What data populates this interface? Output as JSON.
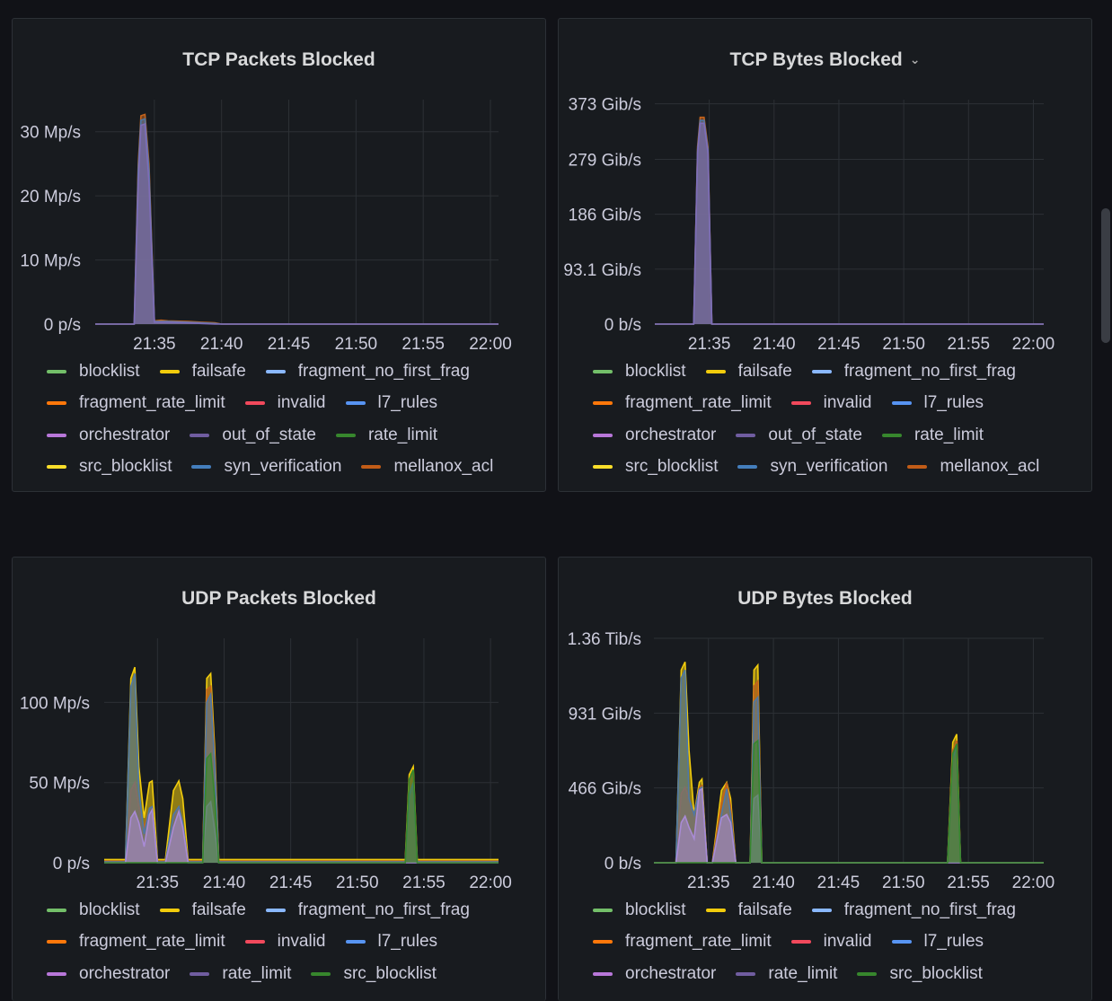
{
  "panels": [
    {
      "title": "TCP Packets Blocked",
      "has_menu": false,
      "chart_data": {
        "type": "area",
        "title": "TCP Packets Blocked",
        "unit": "p/s",
        "y_ticks": [
          "0 p/s",
          "10 Mp/s",
          "20 Mp/s",
          "30 Mp/s"
        ],
        "y_tick_values": [
          0,
          10,
          20,
          30
        ],
        "ylim": [
          0,
          35
        ],
        "x_ticks": [
          "21:35",
          "21:40",
          "21:45",
          "21:50",
          "21:55",
          "22:00"
        ],
        "x_tick_values": [
          35,
          40,
          45,
          50,
          55,
          60
        ],
        "xlim": [
          30.6,
          60.6
        ],
        "x": [
          30.6,
          33.5,
          33.8,
          34.0,
          34.3,
          34.6,
          35.0,
          35.5,
          36.0,
          37.5,
          38.5,
          39.5,
          40.0,
          60.6
        ],
        "series": [
          {
            "name": "mellanox_acl",
            "color": "#c4631c",
            "values": [
              0,
              0,
              25,
              32.5,
              32.7,
              25,
              0.5,
              0.6,
              0.5,
              0.4,
              0.3,
              0.2,
              0,
              0
            ]
          },
          {
            "name": "syn_verification",
            "color": "#4e78a6",
            "values": [
              0,
              0,
              24,
              31.8,
              32.0,
              24,
              0.4,
              0.4,
              0.4,
              0.3,
              0.2,
              0.1,
              0,
              0
            ]
          },
          {
            "name": "out_of_state",
            "color": "#7e6db8",
            "values": [
              0,
              0,
              22,
              31.0,
              31.2,
              22,
              0.3,
              0.3,
              0.3,
              0.2,
              0.1,
              0,
              0,
              0
            ]
          }
        ],
        "legend": [
          [
            {
              "name": "blocklist",
              "color": "#73bf69"
            },
            {
              "name": "failsafe",
              "color": "#f2cc0c"
            },
            {
              "name": "fragment_no_first_frag",
              "color": "#8ab8ff"
            }
          ],
          [
            {
              "name": "fragment_rate_limit",
              "color": "#ff780a"
            },
            {
              "name": "invalid",
              "color": "#f2495c"
            },
            {
              "name": "l7_rules",
              "color": "#5794f2"
            }
          ],
          [
            {
              "name": "orchestrator",
              "color": "#b877d9"
            },
            {
              "name": "out_of_state",
              "color": "#705da0"
            },
            {
              "name": "rate_limit",
              "color": "#37872d"
            }
          ],
          [
            {
              "name": "src_blocklist",
              "color": "#fade2a"
            },
            {
              "name": "syn_verification",
              "color": "#447ebc"
            },
            {
              "name": "mellanox_acl",
              "color": "#c15c17"
            }
          ]
        ]
      }
    },
    {
      "title": "TCP Bytes Blocked",
      "has_menu": true,
      "chart_data": {
        "type": "area",
        "title": "TCP Bytes Blocked",
        "unit": "b/s",
        "y_ticks": [
          "0 b/s",
          "93.1 Gib/s",
          "186 Gib/s",
          "279 Gib/s",
          "373 Gib/s"
        ],
        "y_tick_values": [
          0,
          93.1,
          186,
          279,
          373
        ],
        "ylim": [
          0,
          380
        ],
        "x_ticks": [
          "21:35",
          "21:40",
          "21:45",
          "21:50",
          "21:55",
          "22:00"
        ],
        "x_tick_values": [
          35,
          40,
          45,
          50,
          55,
          60
        ],
        "xlim": [
          30.8,
          60.8
        ],
        "x": [
          30.8,
          33.8,
          34.1,
          34.3,
          34.6,
          34.9,
          35.2,
          60.8
        ],
        "series": [
          {
            "name": "mellanox_acl",
            "color": "#c4631c",
            "values": [
              0,
              0,
              300,
              350,
              350,
              300,
              0,
              0
            ]
          },
          {
            "name": "syn_verification",
            "color": "#4e78a6",
            "values": [
              0,
              0,
              295,
              345,
              345,
              295,
              0,
              0
            ]
          },
          {
            "name": "out_of_state",
            "color": "#7e6db8",
            "values": [
              0,
              0,
              290,
              340,
              340,
              290,
              0,
              0
            ]
          }
        ],
        "legend": [
          [
            {
              "name": "blocklist",
              "color": "#73bf69"
            },
            {
              "name": "failsafe",
              "color": "#f2cc0c"
            },
            {
              "name": "fragment_no_first_frag",
              "color": "#8ab8ff"
            }
          ],
          [
            {
              "name": "fragment_rate_limit",
              "color": "#ff780a"
            },
            {
              "name": "invalid",
              "color": "#f2495c"
            },
            {
              "name": "l7_rules",
              "color": "#5794f2"
            }
          ],
          [
            {
              "name": "orchestrator",
              "color": "#b877d9"
            },
            {
              "name": "out_of_state",
              "color": "#705da0"
            },
            {
              "name": "rate_limit",
              "color": "#37872d"
            }
          ],
          [
            {
              "name": "src_blocklist",
              "color": "#fade2a"
            },
            {
              "name": "syn_verification",
              "color": "#447ebc"
            },
            {
              "name": "mellanox_acl",
              "color": "#c15c17"
            }
          ]
        ]
      }
    },
    {
      "title": "UDP Packets Blocked",
      "has_menu": false,
      "chart_data": {
        "type": "area",
        "title": "UDP Packets Blocked",
        "unit": "p/s",
        "y_ticks": [
          "0 p/s",
          "50 Mp/s",
          "100 Mp/s"
        ],
        "y_tick_values": [
          0,
          50,
          100
        ],
        "ylim": [
          0,
          140
        ],
        "x_ticks": [
          "21:35",
          "21:40",
          "21:45",
          "21:50",
          "21:55",
          "22:00"
        ],
        "x_tick_values": [
          35,
          40,
          45,
          50,
          55,
          60
        ],
        "xlim": [
          31.0,
          60.6
        ],
        "x": [
          31.0,
          32.6,
          33.0,
          33.3,
          33.6,
          34.0,
          34.4,
          34.6,
          35.0,
          35.3,
          35.6,
          36.2,
          36.6,
          36.9,
          37.3,
          37.6,
          38.4,
          38.7,
          39.0,
          39.3,
          39.6,
          40.5,
          46.0,
          53.6,
          53.9,
          54.2,
          54.5,
          60.6
        ],
        "series": [
          {
            "name": "failsafe",
            "color": "#f2cc0c",
            "values": [
              2,
              2,
              115,
              122,
              60,
              28,
              50,
              51,
              2,
              2,
              2,
              45,
              51,
              40,
              2,
              2,
              2,
              115,
              118,
              70,
              2,
              2,
              2,
              2,
              55,
              60,
              2,
              2
            ]
          },
          {
            "name": "fragment_rate_limit",
            "color": "#c4631c",
            "values": [
              1,
              1,
              45,
              50,
              35,
              22,
              34,
              35,
              1,
              1,
              1,
              28,
              35,
              25,
              1,
              1,
              1,
              108,
              110,
              65,
              1,
              1,
              1,
              1,
              48,
              55,
              1,
              1
            ]
          },
          {
            "name": "l7_rules",
            "color": "#4e78a6",
            "values": [
              0.5,
              0.5,
              110,
              118,
              45,
              18,
              34,
              35,
              0.5,
              0.5,
              0.5,
              30,
              35,
              25,
              0.5,
              0.5,
              0.5,
              100,
              105,
              60,
              0.5,
              0.5,
              0.5,
              0.5,
              42,
              50,
              0.5,
              0.5
            ]
          },
          {
            "name": "orchestrator",
            "color": "#a98bd6",
            "values": [
              0,
              0,
              28,
              32,
              25,
              10,
              30,
              33,
              0,
              0,
              0,
              22,
              32,
              22,
              0,
              0,
              0,
              35,
              38,
              20,
              0,
              0,
              0,
              0,
              0,
              0,
              0,
              0
            ]
          },
          {
            "name": "src_blocklist",
            "color": "#37872d",
            "values": [
              0,
              0,
              0,
              0,
              0,
              0,
              0,
              0,
              0,
              0,
              0,
              0,
              0,
              0,
              0,
              0,
              0,
              65,
              68,
              40,
              0,
              0,
              0,
              0,
              52,
              58,
              0,
              0
            ]
          }
        ],
        "legend": [
          [
            {
              "name": "blocklist",
              "color": "#73bf69"
            },
            {
              "name": "failsafe",
              "color": "#f2cc0c"
            },
            {
              "name": "fragment_no_first_frag",
              "color": "#8ab8ff"
            }
          ],
          [
            {
              "name": "fragment_rate_limit",
              "color": "#ff780a"
            },
            {
              "name": "invalid",
              "color": "#f2495c"
            },
            {
              "name": "l7_rules",
              "color": "#5794f2"
            }
          ],
          [
            {
              "name": "orchestrator",
              "color": "#b877d9"
            },
            {
              "name": "rate_limit",
              "color": "#705da0"
            },
            {
              "name": "src_blocklist",
              "color": "#37872d"
            }
          ]
        ]
      }
    },
    {
      "title": "UDP Bytes Blocked",
      "has_menu": false,
      "chart_data": {
        "type": "area",
        "title": "UDP Bytes Blocked",
        "unit": "b/s",
        "y_ticks": [
          "0 b/s",
          "466 Gib/s",
          "931 Gib/s",
          "1.36 Tib/s"
        ],
        "y_tick_values": [
          0,
          466,
          931,
          1397
        ],
        "ylim": [
          0,
          1397
        ],
        "x_ticks": [
          "21:35",
          "21:40",
          "21:45",
          "21:50",
          "21:55",
          "22:00"
        ],
        "x_tick_values": [
          35,
          40,
          45,
          50,
          55,
          60
        ],
        "xlim": [
          30.8,
          60.8
        ],
        "x": [
          30.8,
          32.5,
          32.9,
          33.2,
          33.5,
          33.9,
          34.3,
          34.5,
          34.9,
          35.3,
          36.0,
          36.4,
          36.7,
          37.1,
          38.2,
          38.5,
          38.8,
          39.1,
          39.4,
          53.4,
          53.8,
          54.1,
          54.4,
          60.8
        ],
        "series": [
          {
            "name": "failsafe",
            "color": "#f2cc0c",
            "values": [
              0,
              0,
              1200,
              1250,
              700,
              300,
              500,
              520,
              0,
              0,
              450,
              500,
              400,
              0,
              0,
              1200,
              1230,
              0,
              0,
              0,
              750,
              800,
              0,
              0
            ]
          },
          {
            "name": "fragment_rate_limit",
            "color": "#c4631c",
            "values": [
              0,
              0,
              430,
              470,
              400,
              300,
              470,
              480,
              0,
              0,
              380,
              500,
              350,
              0,
              0,
              1100,
              1130,
              0,
              0,
              0,
              700,
              760,
              0,
              0
            ]
          },
          {
            "name": "l7_rules",
            "color": "#4e78a6",
            "values": [
              0,
              0,
              1150,
              1200,
              400,
              300,
              460,
              470,
              0,
              0,
              300,
              460,
              300,
              0,
              0,
              1000,
              1030,
              0,
              0,
              0,
              650,
              720,
              0,
              0
            ]
          },
          {
            "name": "orchestrator",
            "color": "#a98bd6",
            "values": [
              0,
              0,
              250,
              290,
              220,
              150,
              450,
              460,
              0,
              0,
              280,
              300,
              250,
              0,
              0,
              400,
              420,
              0,
              0,
              0,
              0,
              0,
              0,
              0
            ]
          },
          {
            "name": "src_blocklist",
            "color": "#37872d",
            "values": [
              0,
              0,
              0,
              0,
              0,
              0,
              0,
              0,
              0,
              0,
              0,
              0,
              0,
              0,
              0,
              740,
              760,
              0,
              0,
              0,
              680,
              740,
              0,
              0
            ]
          }
        ],
        "legend": [
          [
            {
              "name": "blocklist",
              "color": "#73bf69"
            },
            {
              "name": "failsafe",
              "color": "#f2cc0c"
            },
            {
              "name": "fragment_no_first_frag",
              "color": "#8ab8ff"
            }
          ],
          [
            {
              "name": "fragment_rate_limit",
              "color": "#ff780a"
            },
            {
              "name": "invalid",
              "color": "#f2495c"
            },
            {
              "name": "l7_rules",
              "color": "#5794f2"
            }
          ],
          [
            {
              "name": "orchestrator",
              "color": "#b877d9"
            },
            {
              "name": "rate_limit",
              "color": "#705da0"
            },
            {
              "name": "src_blocklist",
              "color": "#37872d"
            }
          ]
        ]
      }
    }
  ]
}
